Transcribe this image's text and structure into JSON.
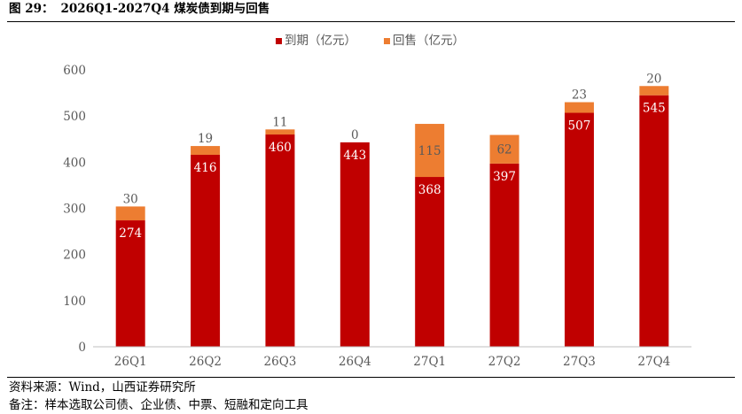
{
  "header": {
    "figure_label": "图 29：",
    "figure_title": "2026Q1-2027Q4 煤炭债到期与回售"
  },
  "footer": {
    "source": "资料来源：Wind，山西证券研究所",
    "note": "备注：样本选取公司债、企业债、中票、短融和定向工具"
  },
  "colors": {
    "maturity": "#C00000",
    "putback": "#ED7D31",
    "axis": "#BFBFBF",
    "tick_text": "#595959"
  },
  "chart_data": {
    "type": "bar",
    "stacked": true,
    "categories": [
      "26Q1",
      "26Q2",
      "26Q3",
      "26Q4",
      "27Q1",
      "27Q2",
      "27Q3",
      "27Q4"
    ],
    "series": [
      {
        "name": "到期（亿元）",
        "values": [
          274,
          416,
          460,
          443,
          368,
          397,
          507,
          545
        ]
      },
      {
        "name": "回售（亿元）",
        "values": [
          30,
          19,
          11,
          0,
          115,
          62,
          23,
          20
        ]
      }
    ],
    "ylim": [
      0,
      600
    ],
    "yticks": [
      0,
      100,
      200,
      300,
      400,
      500,
      600
    ],
    "grid": false,
    "legend": "top-center"
  }
}
